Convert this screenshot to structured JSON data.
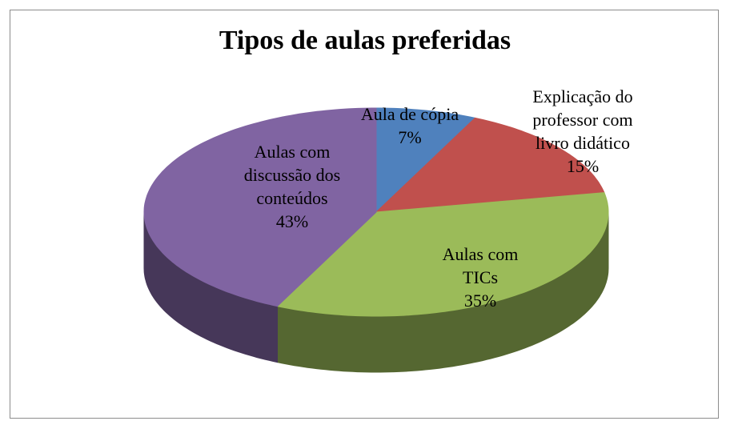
{
  "chart_data": {
    "type": "pie3d",
    "title": "Tipos de aulas preferidas",
    "categories": [
      "Aula de cópia",
      "Explicação do professor com livro didático",
      "Aulas com TICs",
      "Aulas com discussão dos conteúdos"
    ],
    "values": [
      7,
      15,
      35,
      43
    ],
    "value_labels": [
      "7%",
      "15%",
      "35%",
      "43%"
    ],
    "colors": [
      "#4f81bd",
      "#c0504d",
      "#9bbb59",
      "#8064a2"
    ]
  }
}
